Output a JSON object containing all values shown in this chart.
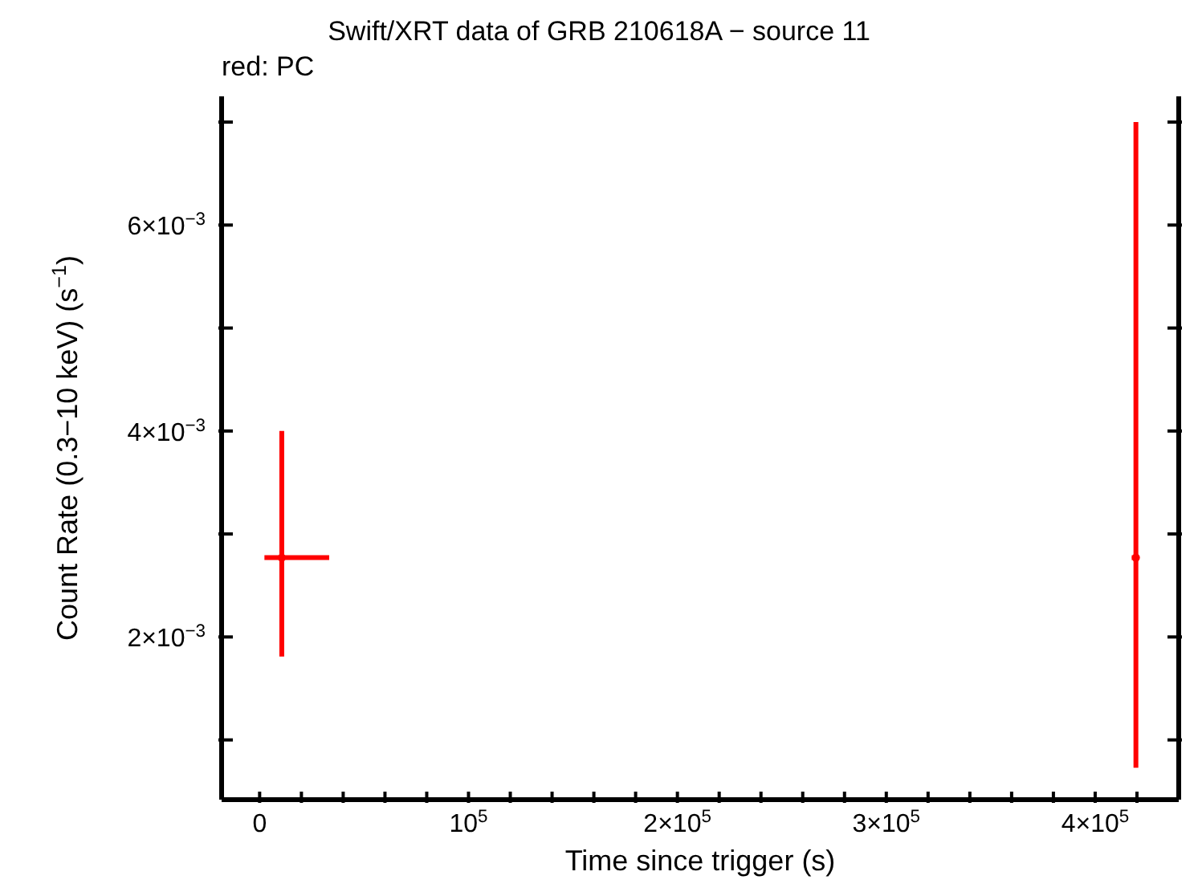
{
  "chart_data": {
    "type": "scatter",
    "title": "Swift/XRT data of GRB 210618A − source 11",
    "subtitle": "red: PC",
    "xlabel": "Time since trigger (s)",
    "ylabel": "Count Rate (0.3−10 keV) (s$^{−1}$)",
    "x": [
      10600,
      419500
    ],
    "series": [
      {
        "color": "#ff0000",
        "values": [
          0.00277,
          0.00277
        ],
        "errors": [
          [
            0.00181,
            0.004
          ],
          [
            0.00073,
            0.007
          ]
        ],
        "xerrors": [
          [
            2300,
            33300
          ],
          [
            417500,
            420500
          ]
        ]
      }
    ],
    "legend": false,
    "grid": false,
    "xlim": [
      -18200,
      440000
    ],
    "xticks": [
      {
        "value": 0,
        "label": "0"
      },
      {
        "value": 20000,
        "label": null
      },
      {
        "value": 40000,
        "label": null
      },
      {
        "value": 60000,
        "label": null
      },
      {
        "value": 80000,
        "label": null
      },
      {
        "value": 100000,
        "label": "10$^{5}$"
      },
      {
        "value": 120000,
        "label": null
      },
      {
        "value": 140000,
        "label": null
      },
      {
        "value": 160000,
        "label": null
      },
      {
        "value": 180000,
        "label": null
      },
      {
        "value": 200000,
        "label": "2×10$^{5}$"
      },
      {
        "value": 220000,
        "label": null
      },
      {
        "value": 240000,
        "label": null
      },
      {
        "value": 260000,
        "label": null
      },
      {
        "value": 280000,
        "label": null
      },
      {
        "value": 300000,
        "label": "3×10$^{5}$"
      },
      {
        "value": 320000,
        "label": null
      },
      {
        "value": 340000,
        "label": null
      },
      {
        "value": 360000,
        "label": null
      },
      {
        "value": 380000,
        "label": null
      },
      {
        "value": 400000,
        "label": "4×10$^{5}$"
      },
      {
        "value": 420000,
        "label": null
      }
    ],
    "ylim": [
      0.00042,
      0.00725
    ],
    "yticks": [
      {
        "value": 0.001,
        "label": null
      },
      {
        "value": 0.002,
        "label": "2×10$^{−3}$"
      },
      {
        "value": 0.003,
        "label": null
      },
      {
        "value": 0.004,
        "label": "4×10$^{−3}$"
      },
      {
        "value": 0.005,
        "label": null
      },
      {
        "value": 0.006,
        "label": "6×10$^{−3}$"
      },
      {
        "value": 0.007,
        "label": null
      }
    ]
  }
}
